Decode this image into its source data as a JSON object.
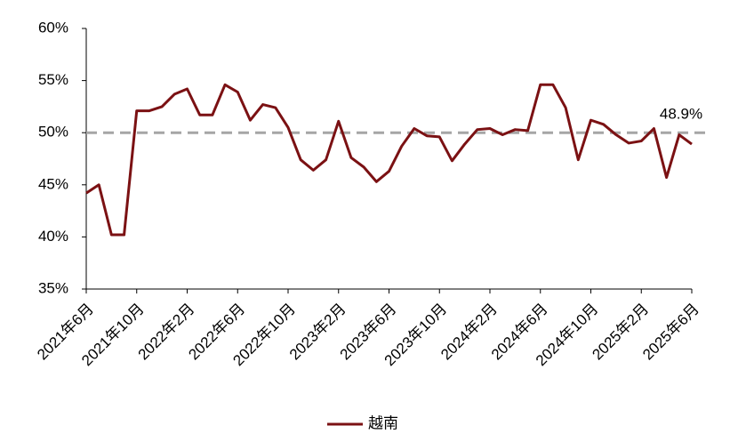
{
  "chart_data": {
    "type": "line",
    "categories": [
      "2021年6月",
      null,
      null,
      null,
      "2021年10月",
      null,
      null,
      null,
      "2022年2月",
      null,
      null,
      null,
      "2022年6月",
      null,
      null,
      null,
      "2022年10月",
      null,
      null,
      null,
      "2023年2月",
      null,
      null,
      null,
      "2023年6月",
      null,
      null,
      null,
      "2023年10月",
      null,
      null,
      null,
      "2024年2月",
      null,
      null,
      null,
      "2024年6月",
      null,
      null,
      null,
      "2024年10月",
      null,
      null,
      null,
      "2025年2月",
      null,
      null,
      null,
      "2025年6月"
    ],
    "series": [
      {
        "name": "越南",
        "color": "#7b1113",
        "values": [
          44.2,
          45.0,
          40.2,
          40.2,
          52.1,
          52.1,
          52.5,
          53.7,
          54.2,
          51.7,
          51.7,
          54.6,
          53.9,
          51.2,
          52.7,
          52.4,
          50.5,
          47.4,
          46.4,
          47.4,
          51.1,
          47.6,
          46.7,
          45.3,
          46.3,
          48.7,
          50.4,
          49.7,
          49.6,
          47.3,
          48.9,
          50.3,
          50.4,
          49.8,
          50.3,
          50.2,
          54.6,
          54.6,
          52.4,
          47.4,
          51.2,
          50.8,
          49.8,
          49.0,
          49.2,
          50.4,
          45.7,
          49.8,
          48.9
        ]
      }
    ],
    "ylim": [
      35,
      60
    ],
    "yticks": [
      {
        "value": 35,
        "label": "35%"
      },
      {
        "value": 40,
        "label": "40%"
      },
      {
        "value": 45,
        "label": "45%"
      },
      {
        "value": 50,
        "label": "50%"
      },
      {
        "value": 55,
        "label": "55%"
      },
      {
        "value": 60,
        "label": "60%"
      }
    ],
    "reference_line": {
      "value": 50,
      "color": "#a6a6a6"
    },
    "annotation": "48.9%",
    "legend": "bottom"
  }
}
